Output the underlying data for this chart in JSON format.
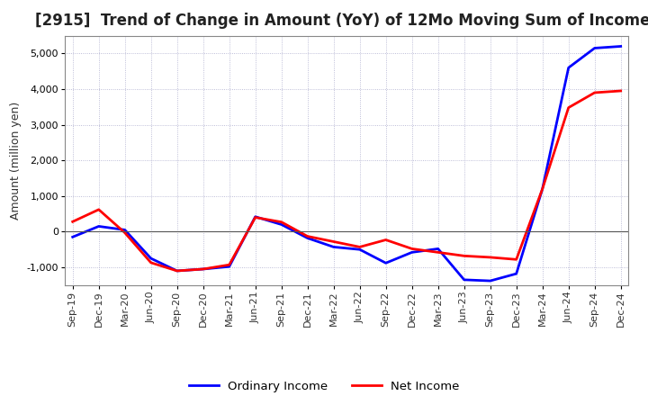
{
  "title": "[2915]  Trend of Change in Amount (YoY) of 12Mo Moving Sum of Incomes",
  "ylabel": "Amount (million yen)",
  "x_labels": [
    "Sep-19",
    "Dec-19",
    "Mar-20",
    "Jun-20",
    "Sep-20",
    "Dec-20",
    "Mar-21",
    "Jun-21",
    "Sep-21",
    "Dec-21",
    "Mar-22",
    "Jun-22",
    "Sep-22",
    "Dec-22",
    "Mar-23",
    "Jun-23",
    "Sep-23",
    "Dec-23",
    "Mar-24",
    "Jun-24",
    "Sep-24",
    "Dec-24"
  ],
  "ordinary_income": [
    -150,
    150,
    50,
    -750,
    -1100,
    -1050,
    -980,
    420,
    200,
    -180,
    -430,
    -500,
    -880,
    -580,
    -480,
    -1350,
    -1380,
    -1180,
    1200,
    4600,
    5150,
    5200
  ],
  "net_income": [
    280,
    620,
    -30,
    -870,
    -1100,
    -1050,
    -930,
    400,
    270,
    -130,
    -280,
    -430,
    -230,
    -480,
    -580,
    -680,
    -720,
    -780,
    1200,
    3480,
    3900,
    3950
  ],
  "ordinary_color": "#0000FF",
  "net_color": "#FF0000",
  "background_color": "#FFFFFF",
  "grid_color": "#AAAACC",
  "ylim": [
    -1500,
    5500
  ],
  "yticks": [
    -1000,
    0,
    1000,
    2000,
    3000,
    4000,
    5000
  ],
  "legend_labels": [
    "Ordinary Income",
    "Net Income"
  ],
  "title_fontsize": 12,
  "axis_fontsize": 8,
  "ylabel_fontsize": 9
}
